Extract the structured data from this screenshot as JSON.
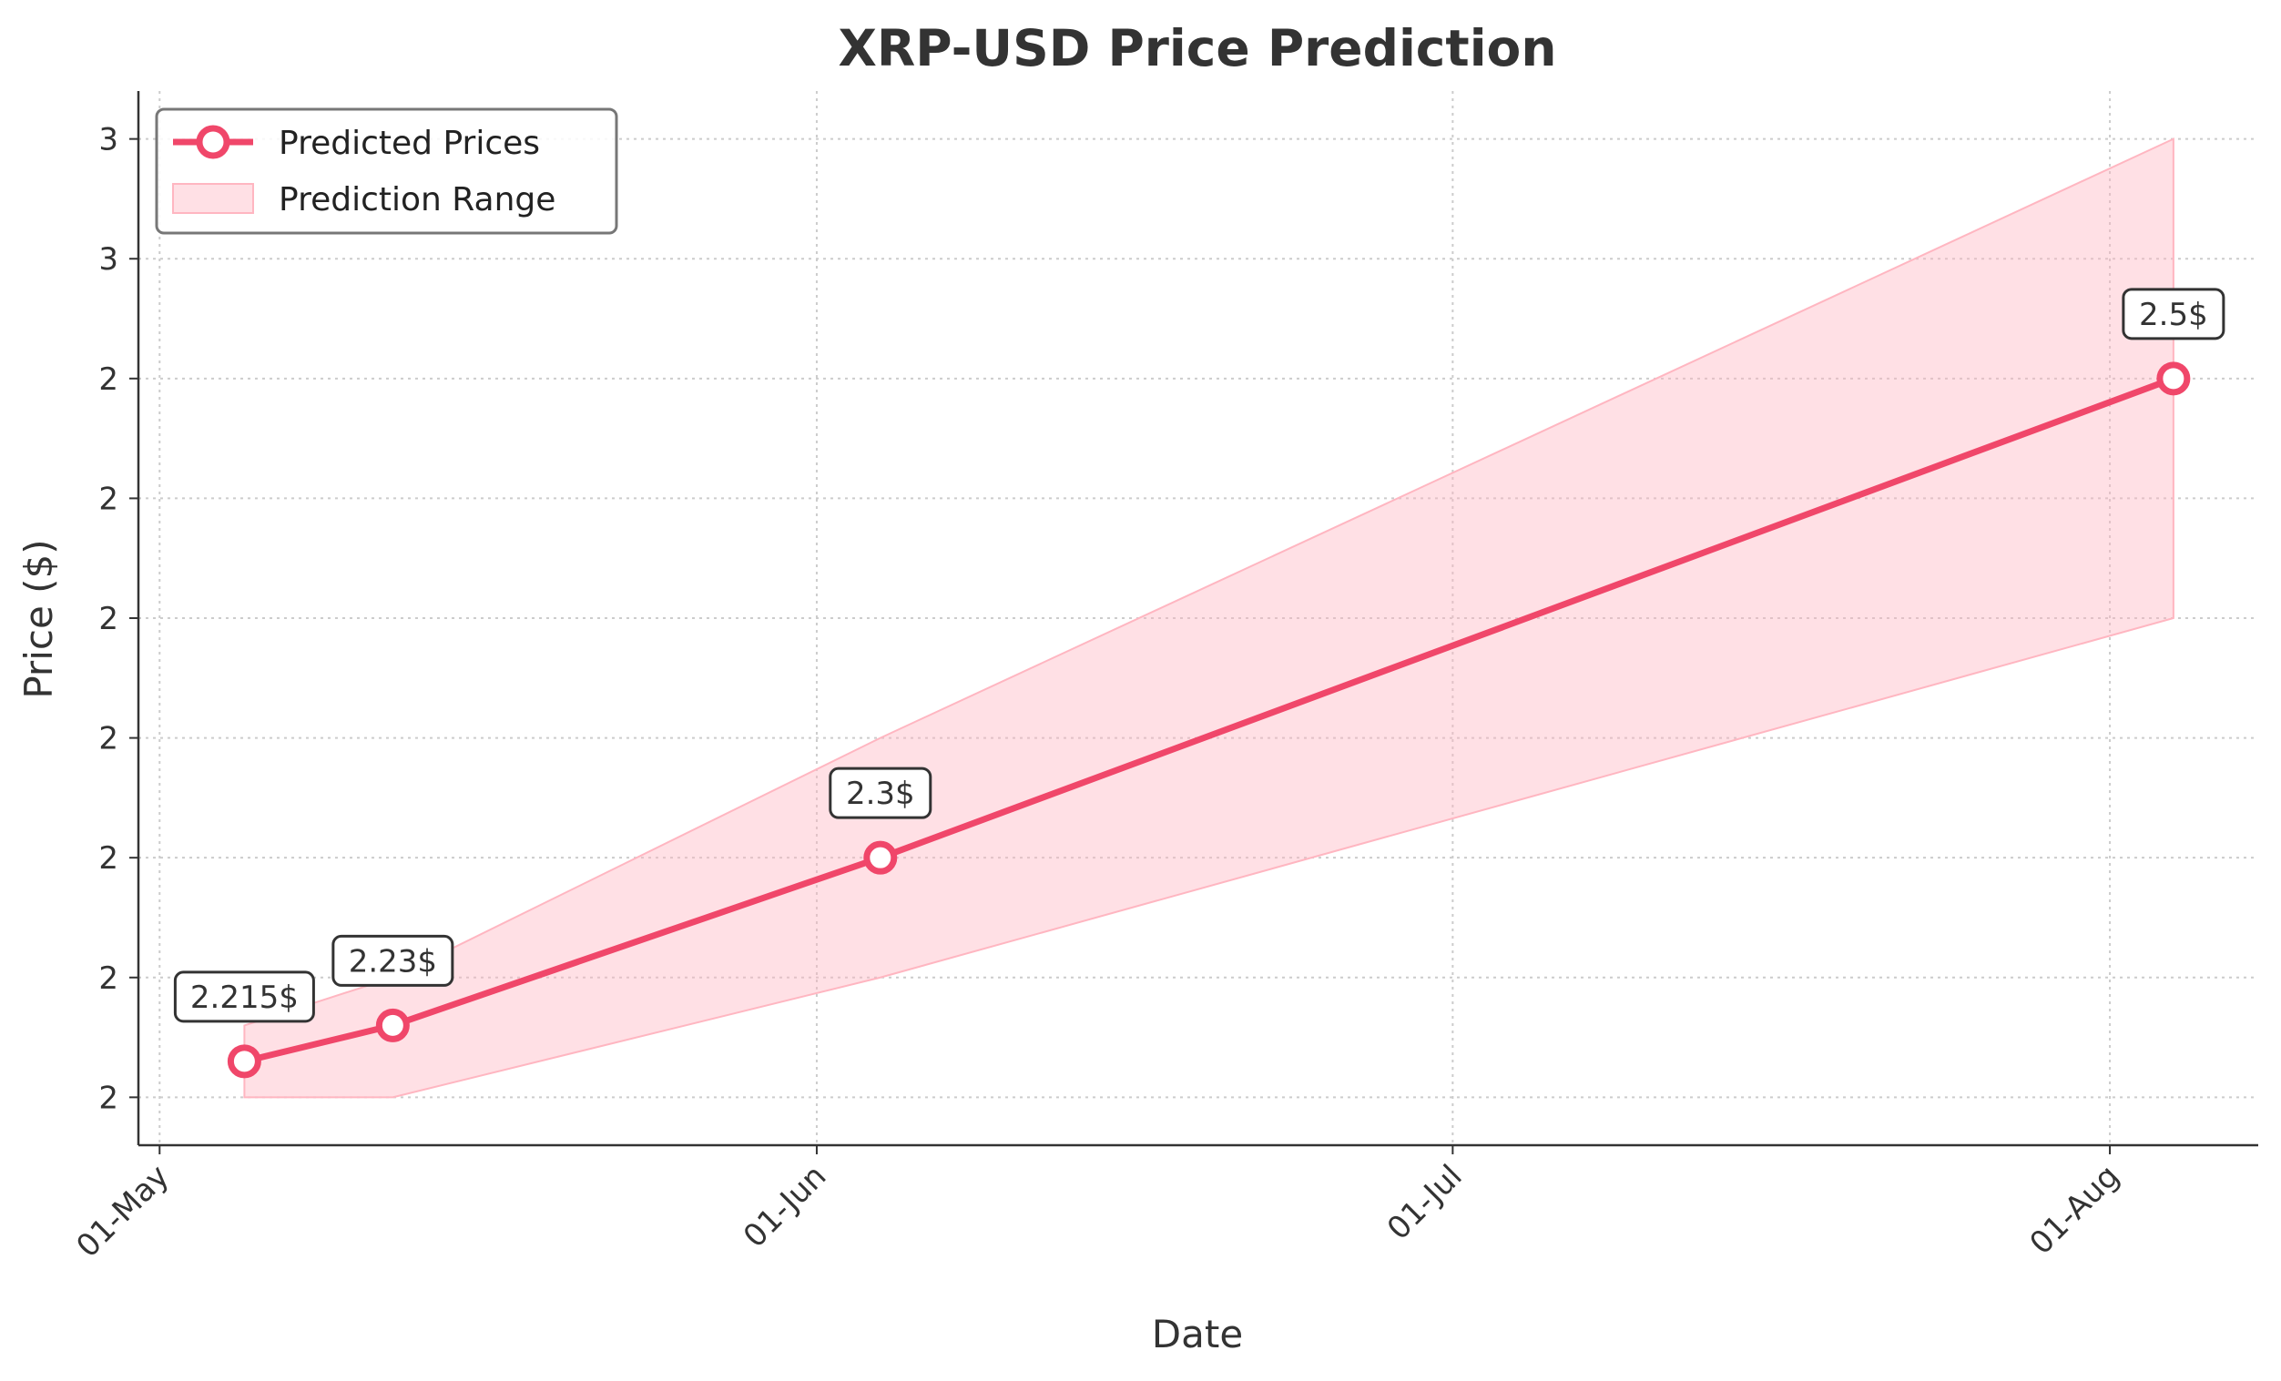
{
  "chart_data": {
    "type": "line",
    "title": "XRP-USD Price Prediction",
    "xlabel": "Date",
    "ylabel": "Price ($)",
    "x_ticks": [
      {
        "date": "2025-05-01",
        "label": "01-May"
      },
      {
        "date": "2025-06-01",
        "label": "01-Jun"
      },
      {
        "date": "2025-07-01",
        "label": "01-Jul"
      },
      {
        "date": "2025-08-01",
        "label": "01-Aug"
      }
    ],
    "xlim": [
      "2025-04-30",
      "2025-08-08"
    ],
    "y_ticks": [
      {
        "value": 2.2,
        "label": "2"
      },
      {
        "value": 2.25,
        "label": "2"
      },
      {
        "value": 2.3,
        "label": "2"
      },
      {
        "value": 2.35,
        "label": "2"
      },
      {
        "value": 2.4,
        "label": "2"
      },
      {
        "value": 2.45,
        "label": "2"
      },
      {
        "value": 2.5,
        "label": "2"
      },
      {
        "value": 2.55,
        "label": "3"
      },
      {
        "value": 2.6,
        "label": "3"
      }
    ],
    "ylim": [
      2.18,
      2.62
    ],
    "grid": true,
    "legend_position": "top-left",
    "colors": {
      "line": "#f0476a",
      "band": "#ffb6c1"
    },
    "series": [
      {
        "name": "Predicted Prices",
        "x": [
          "2025-05-05",
          "2025-05-12",
          "2025-06-04",
          "2025-08-04"
        ],
        "y": [
          2.215,
          2.23,
          2.3,
          2.5
        ],
        "annotations": [
          "2.215$",
          "2.23$",
          "2.3$",
          "2.5$"
        ]
      },
      {
        "name": "Prediction Range",
        "x": [
          "2025-05-05",
          "2025-05-12",
          "2025-06-04",
          "2025-08-04"
        ],
        "lower": [
          2.2,
          2.2,
          2.25,
          2.4
        ],
        "upper": [
          2.23,
          2.25,
          2.35,
          2.6
        ]
      }
    ]
  }
}
